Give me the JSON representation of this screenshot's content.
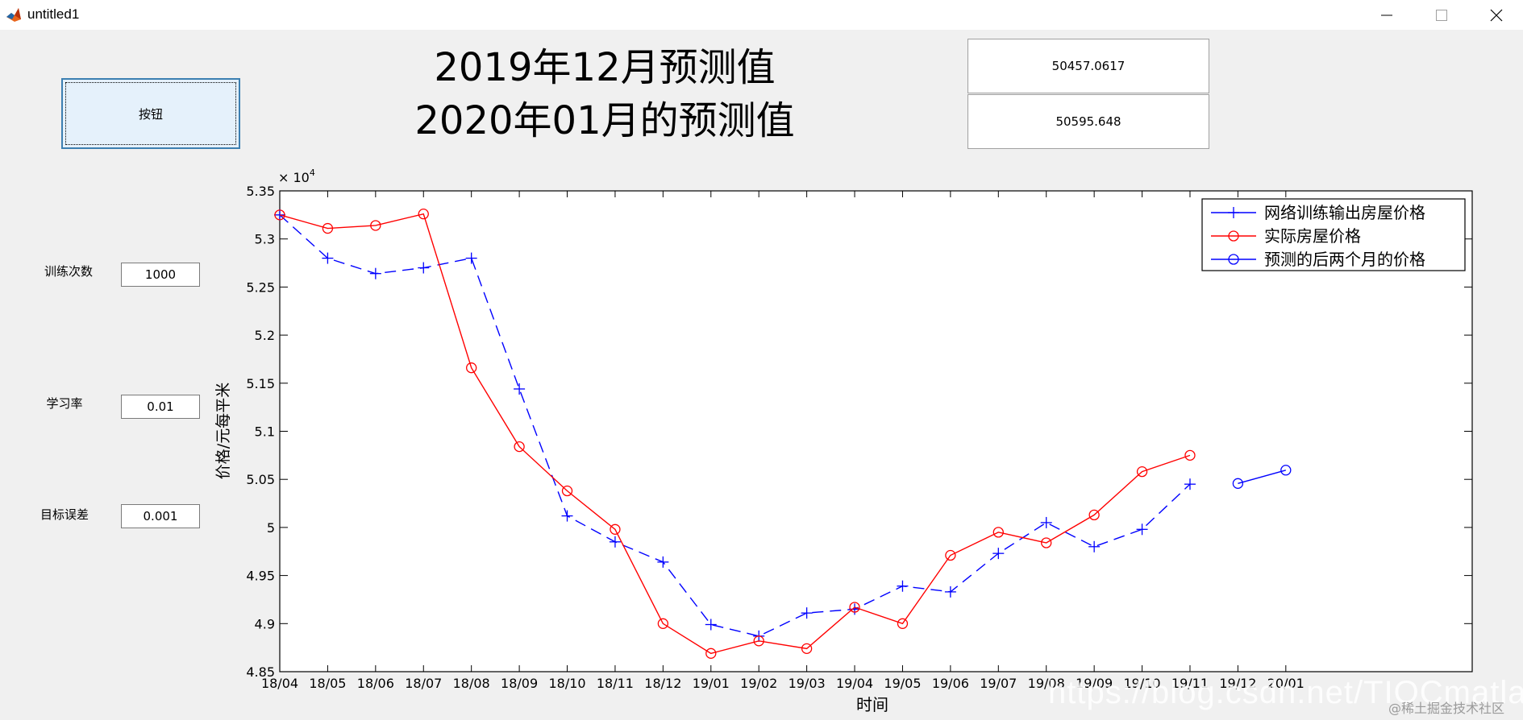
{
  "window": {
    "title": "untitled1"
  },
  "controls": {
    "button_label": "按钮",
    "heading_line1": "2019年12月预测值",
    "heading_line2": "2020年01月的预测值",
    "value_dec": "50457.0617",
    "value_jan": "50595.648",
    "epochs_label": "训练次数",
    "epochs_value": "1000",
    "lr_label": "学习率",
    "lr_value": "0.01",
    "goal_label": "目标误差",
    "goal_value": "0.001"
  },
  "watermark": {
    "url": "https://blog.csdn.net/TIQCmatlab",
    "site": "@稀土掘金技术社区"
  },
  "colors": {
    "network": "#0000ff",
    "actual": "#ff0000",
    "forecast": "#0000ff"
  },
  "chart_data": {
    "type": "line",
    "xlabel": "时间",
    "ylabel": "价格/元每平米",
    "exponent": "× 10",
    "exponent_power": "4",
    "categories": [
      "18/04",
      "18/05",
      "18/06",
      "18/07",
      "18/08",
      "18/09",
      "18/10",
      "18/11",
      "18/12",
      "19/01",
      "19/02",
      "19/03",
      "19/04",
      "19/05",
      "19/06",
      "19/07",
      "19/08",
      "19/09",
      "19/10",
      "19/11",
      "19/12",
      "20/01"
    ],
    "ylim": [
      48500,
      53500
    ],
    "yticks": [
      48500,
      49000,
      49500,
      50000,
      50500,
      51000,
      51500,
      52000,
      52500,
      53000,
      53500
    ],
    "ytick_labels": [
      "4.85",
      "4.9",
      "4.95",
      "5",
      "5.05",
      "5.1",
      "5.15",
      "5.2",
      "5.25",
      "5.3",
      "5.35"
    ],
    "legend_position": "top-right",
    "grid": false,
    "series": [
      {
        "name": "网络训练输出房屋价格",
        "style": "dashed",
        "marker": "plus",
        "color": "#0000ff",
        "values": [
          53250,
          52800,
          52640,
          52700,
          52800,
          51440,
          50120,
          49850,
          49640,
          48990,
          48870,
          49110,
          49150,
          49390,
          49330,
          49730,
          50050,
          49800,
          49980,
          50450,
          null,
          null
        ]
      },
      {
        "name": "实际房屋价格",
        "style": "solid",
        "marker": "circle",
        "color": "#ff0000",
        "values": [
          53250,
          53110,
          53140,
          53260,
          51660,
          50840,
          50380,
          49980,
          49000,
          48690,
          48820,
          48740,
          49170,
          49000,
          49710,
          49950,
          49840,
          50130,
          50580,
          50750,
          null,
          null
        ]
      },
      {
        "name": "预测的后两个月的价格",
        "style": "solid",
        "marker": "circle",
        "color": "#0000ff",
        "values": [
          null,
          null,
          null,
          null,
          null,
          null,
          null,
          null,
          null,
          null,
          null,
          null,
          null,
          null,
          null,
          null,
          null,
          null,
          null,
          null,
          50457.0617,
          50595.648
        ]
      }
    ]
  }
}
